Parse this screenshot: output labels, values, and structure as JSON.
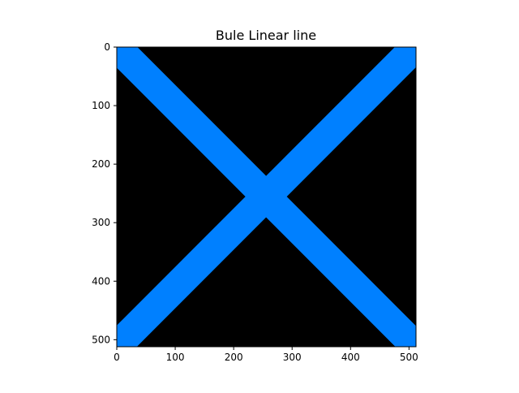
{
  "figure": {
    "title": "Bule Linear line"
  },
  "chart_data": {
    "type": "image",
    "title": "Bule Linear line",
    "xlabel": "",
    "ylabel": "",
    "image_size": [
      512,
      512
    ],
    "xlim": [
      0,
      512
    ],
    "ylim": [
      512,
      0
    ],
    "x_ticks": [
      0,
      100,
      200,
      300,
      400,
      500
    ],
    "y_ticks": [
      0,
      100,
      200,
      300,
      400,
      500
    ],
    "background_color": "#000000",
    "line_color": "#0080ff",
    "line_thickness": 50,
    "lines": [
      {
        "from": [
          0,
          0
        ],
        "to": [
          511,
          511
        ]
      },
      {
        "from": [
          0,
          511
        ],
        "to": [
          511,
          0
        ]
      }
    ]
  }
}
